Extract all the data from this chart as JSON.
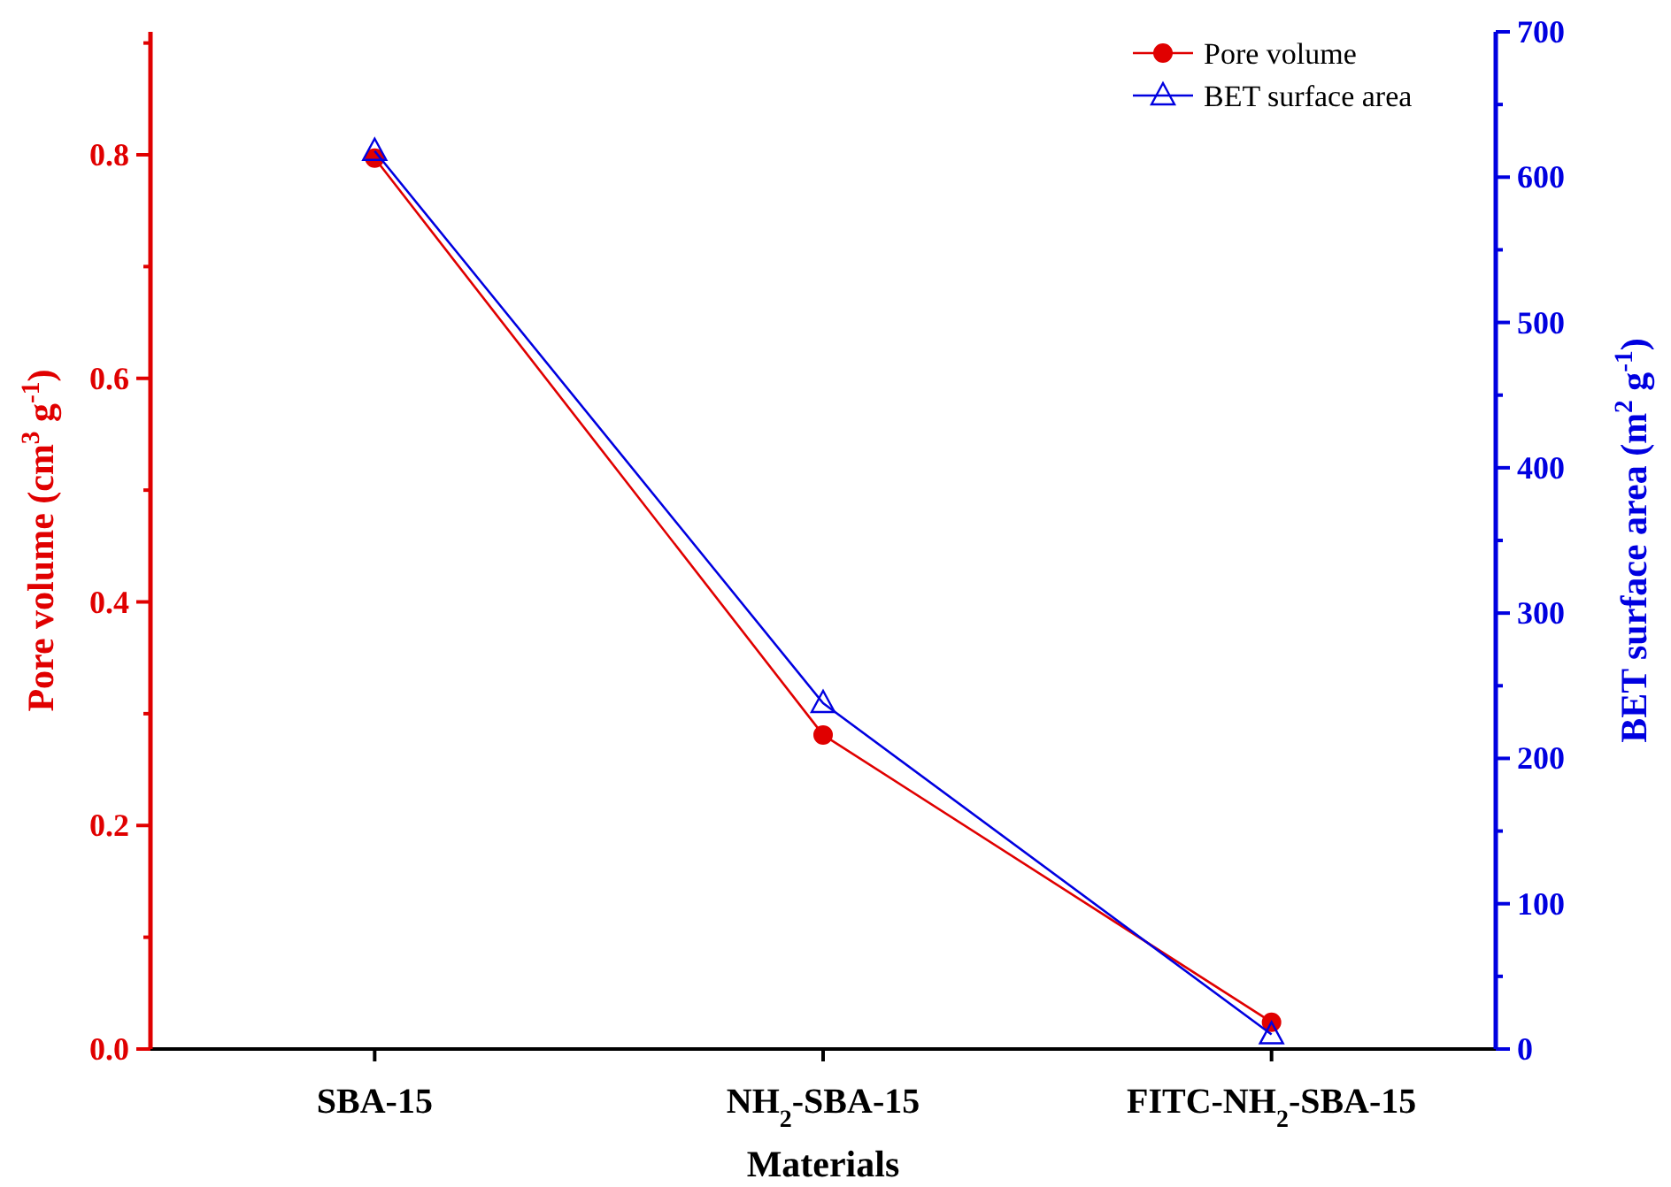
{
  "chart_data": {
    "type": "line",
    "xlabel": "Materials",
    "ylabel": "Pore volume (cm$^{3}$ g$^{-1}$)",
    "y2label": "BET surface area (m$^{2}$ g$^{-1}$)",
    "categories": [
      "SBA-15",
      "NH$_{2}$-SBA-15",
      "FITC-NH$_{2}$-SBA-15"
    ],
    "series": [
      {
        "name": "Pore volume",
        "color": "#e00000",
        "values": [
          0.797,
          0.281,
          0.024
        ],
        "marker": "circle"
      },
      {
        "name": "BET surface area",
        "color": "#0000e0",
        "values": [
          618,
          238,
          10
        ],
        "marker": "triangle",
        "axis": "y2"
      }
    ],
    "ylim": [
      0,
      0.91
    ],
    "yticks": [
      {
        "value": 0,
        "label": "0.0"
      },
      {
        "value": 0.1,
        "label": null
      },
      0.2,
      {
        "value": 0.3,
        "label": null
      },
      0.4,
      {
        "value": 0.5,
        "label": null
      },
      0.6,
      {
        "value": 0.7,
        "label": null
      },
      0.8,
      {
        "value": 0.9,
        "label": null
      }
    ],
    "y2lim": [
      0,
      700
    ],
    "y2ticks": [
      0,
      {
        "value": 50,
        "label": null
      },
      100,
      {
        "value": 150,
        "label": null
      },
      200,
      {
        "value": 250,
        "label": null
      },
      300,
      {
        "value": 350,
        "label": null
      },
      400,
      {
        "value": 450,
        "label": null
      },
      500,
      {
        "value": 550,
        "label": null
      },
      600,
      {
        "value": 650,
        "label": null
      },
      700
    ],
    "legend": "top right",
    "grid": false
  }
}
